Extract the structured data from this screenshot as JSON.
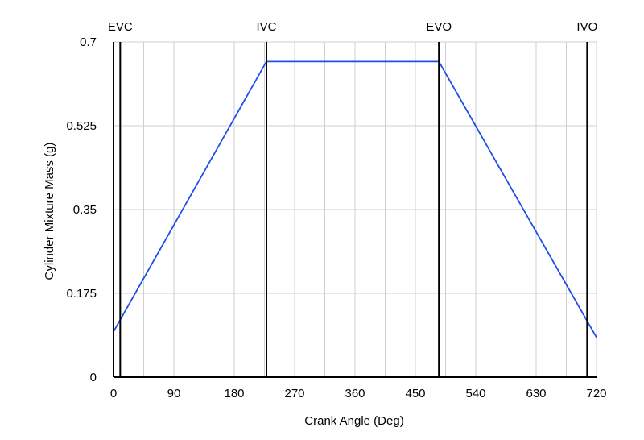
{
  "chart_data": {
    "type": "line",
    "title": "",
    "xlabel": "Crank Angle (Deg)",
    "ylabel": "Cylinder Mixture Mass (g)",
    "xlim": [
      0,
      720
    ],
    "ylim": [
      0,
      0.7
    ],
    "x_ticks": [
      0,
      90,
      180,
      270,
      360,
      450,
      540,
      630,
      720
    ],
    "y_ticks": [
      0,
      0.175,
      0.35,
      0.525,
      0.7
    ],
    "y_tick_labels": [
      "0",
      "0.175",
      "0.35",
      "0.525",
      "0.7"
    ],
    "grid": true,
    "series": [
      {
        "color": "#1f4fe8",
        "x": [
          0,
          228,
          485,
          720
        ],
        "y": [
          0.095,
          0.659,
          0.659,
          0.083
        ]
      }
    ],
    "event_markers": [
      {
        "label": "EVC",
        "x": 10
      },
      {
        "label": "IVC",
        "x": 228
      },
      {
        "label": "EVO",
        "x": 485
      },
      {
        "label": "IVO",
        "x": 706
      }
    ]
  }
}
